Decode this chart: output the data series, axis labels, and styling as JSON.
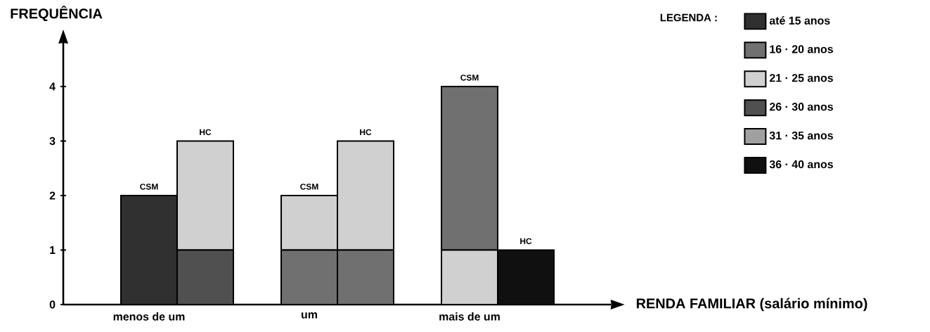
{
  "chart_data": {
    "type": "bar",
    "stacked": true,
    "categories": [
      "menos de um",
      null,
      "um",
      null,
      "mais de um",
      null
    ],
    "series": [
      {
        "name": "até 15 anos",
        "color": "#303030",
        "values": [
          2,
          null,
          null,
          null,
          null,
          null
        ]
      },
      {
        "name": "16 · 20 anos",
        "color": "#707070",
        "values": [
          null,
          null,
          1,
          1,
          null,
          null
        ]
      },
      {
        "name": "21 · 25 anos",
        "color": "#d0d0d0",
        "values": [
          null,
          null,
          null,
          null,
          1,
          null
        ]
      },
      {
        "name": "26 · 30 anos",
        "color": "#505050",
        "values": [
          null,
          1,
          null,
          null,
          null,
          null
        ]
      },
      {
        "name": "31 · 35 anos",
        "color": "#a0a0a0",
        "values": [
          null,
          null,
          null,
          null,
          null,
          null
        ]
      },
      {
        "name": "36 · 40 anos",
        "color": "#101010",
        "values": [
          null,
          null,
          null,
          null,
          null,
          1
        ]
      },
      {
        "color": "#d0d0d0",
        "values": [
          null,
          2,
          1,
          2,
          null,
          null
        ]
      },
      {
        "color": "#707070",
        "values": [
          null,
          null,
          null,
          null,
          3,
          null
        ]
      }
    ],
    "annotations": [
      "CSM",
      "HC",
      "CSM",
      "HC",
      "CSM",
      "HC"
    ],
    "xlabel": "RENDA FAMILIAR (salário mínimo)",
    "ylabel": "FREQUÊNCIA",
    "legend_title": "LEGENDA :",
    "legend": "top right",
    "ylim": [
      0,
      4.8
    ],
    "yticks": [
      0,
      1,
      2,
      3,
      4
    ]
  }
}
